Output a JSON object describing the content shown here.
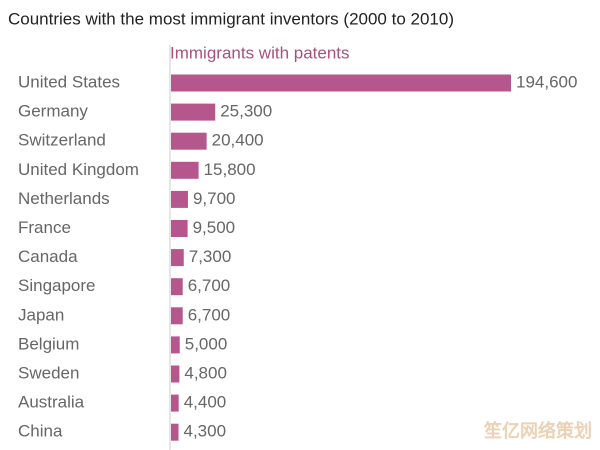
{
  "chart_data": {
    "type": "bar",
    "orientation": "horizontal",
    "title": "Countries with the most immigrant inventors (2000 to 2010)",
    "categories": [
      "United States",
      "Germany",
      "Switzerland",
      "United Kingdom",
      "Netherlands",
      "France",
      "Canada",
      "Singapore",
      "Japan",
      "Belgium",
      "Sweden",
      "Australia",
      "China"
    ],
    "series": [
      {
        "name": "Immigrants with patents",
        "color": "#b5578c",
        "values": [
          194600,
          25300,
          20400,
          15800,
          9700,
          9500,
          7300,
          6700,
          6700,
          5000,
          4800,
          4400,
          4300
        ],
        "value_labels": [
          "194,600",
          "25,300",
          "20,400",
          "15,800",
          "9,700",
          "9,500",
          "7,300",
          "6,700",
          "6,700",
          "5,000",
          "4,800",
          "4,400",
          "4,300"
        ]
      }
    ],
    "xlim": [
      0,
      194600
    ],
    "watermark": "笙亿网络策划"
  }
}
